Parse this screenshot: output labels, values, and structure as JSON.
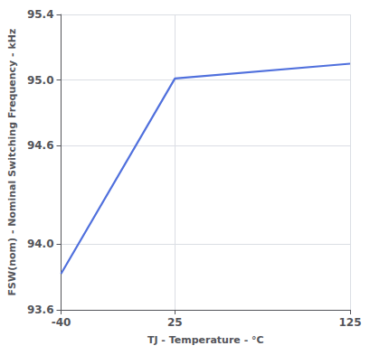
{
  "chart_data": {
    "type": "line",
    "x": [
      -40,
      25,
      125
    ],
    "values": [
      93.82,
      95.01,
      95.1
    ],
    "xlim": [
      -40,
      125
    ],
    "ylim": [
      93.6,
      95.4
    ],
    "xticks": [
      -40,
      25,
      125
    ],
    "yticks": [
      93.6,
      {
        "value": 94,
        "label": "94.0"
      },
      94.6,
      {
        "value": 95,
        "label": "95.0"
      },
      95.4
    ],
    "xlabel": "TJ - Temperature - °C",
    "ylabel": "FSW(nom) - Nominal Switching Frequency - kHz",
    "grid": true
  }
}
